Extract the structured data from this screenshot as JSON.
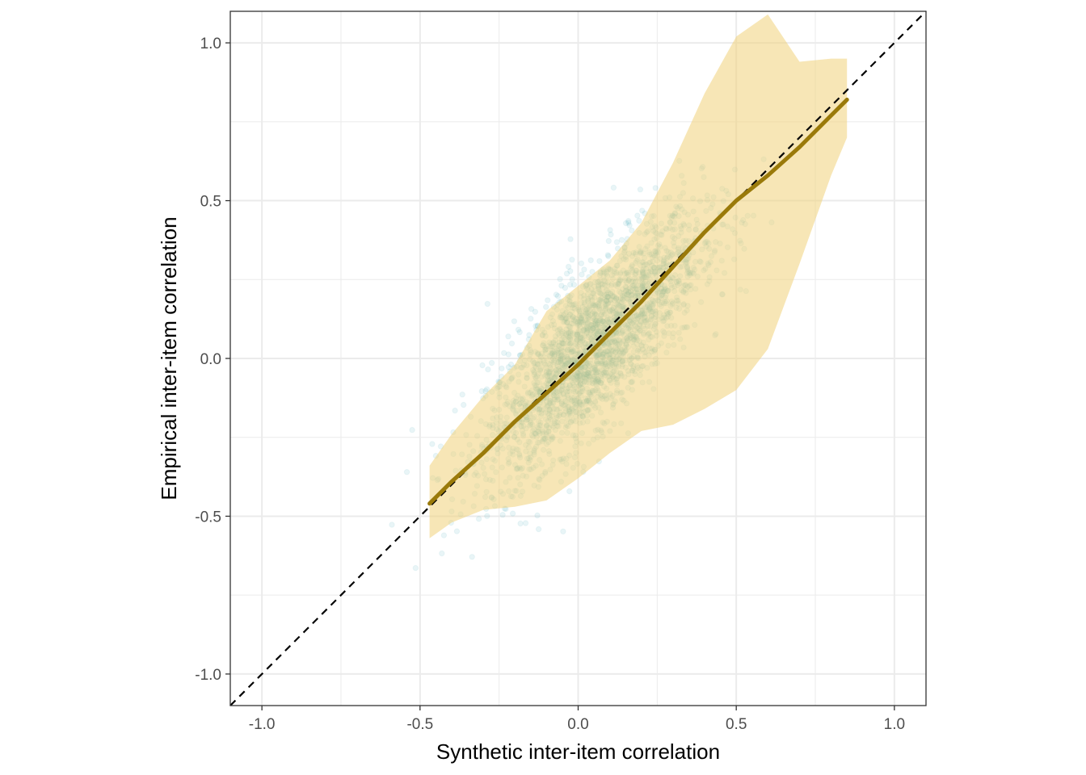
{
  "chart_data": {
    "type": "scatter",
    "title": "",
    "xlabel": "Synthetic inter-item correlation",
    "ylabel": "Empirical inter-item correlation",
    "xlim": [
      -1.1,
      1.1
    ],
    "ylim": [
      -1.1,
      1.1
    ],
    "x_ticks": [
      -1.0,
      -0.5,
      0.0,
      0.5,
      1.0
    ],
    "y_ticks": [
      -1.0,
      -0.5,
      0.0,
      0.5,
      1.0
    ],
    "x_tick_labels": [
      "-1.0",
      "-0.5",
      "0.0",
      "0.5",
      "1.0"
    ],
    "y_tick_labels": [
      "-1.0",
      "-0.5",
      "0.0",
      "0.5",
      "1.0"
    ],
    "grid": true,
    "legend": "none",
    "colors": {
      "points": "#3aa6b3",
      "band": "#f0d27a",
      "trend_line": "#9a7a0a",
      "reference_line": "#000000",
      "grid": "#ebebeb"
    },
    "reference_line": {
      "slope": 1,
      "intercept": 0,
      "style": "dashed"
    },
    "points_description": {
      "x_mean": 0.05,
      "x_sd": 0.17,
      "y_mean": 0.04,
      "y_sd": 0.2
    },
    "trend_band": {
      "x": [
        -0.47,
        -0.4,
        -0.3,
        -0.2,
        -0.1,
        0.0,
        0.1,
        0.2,
        0.3,
        0.4,
        0.5,
        0.6,
        0.7,
        0.8,
        0.85
      ],
      "y": [
        -0.46,
        -0.39,
        -0.3,
        -0.2,
        -0.11,
        -0.02,
        0.08,
        0.18,
        0.29,
        0.4,
        0.5,
        0.58,
        0.67,
        0.77,
        0.82
      ],
      "lower": [
        -0.57,
        -0.52,
        -0.48,
        -0.47,
        -0.45,
        -0.38,
        -0.3,
        -0.23,
        -0.21,
        -0.16,
        -0.1,
        0.03,
        0.3,
        0.58,
        0.7
      ],
      "upper": [
        -0.34,
        -0.24,
        -0.12,
        -0.02,
        0.15,
        0.23,
        0.31,
        0.43,
        0.62,
        0.84,
        1.02,
        1.09,
        0.94,
        0.95,
        0.95
      ]
    }
  }
}
